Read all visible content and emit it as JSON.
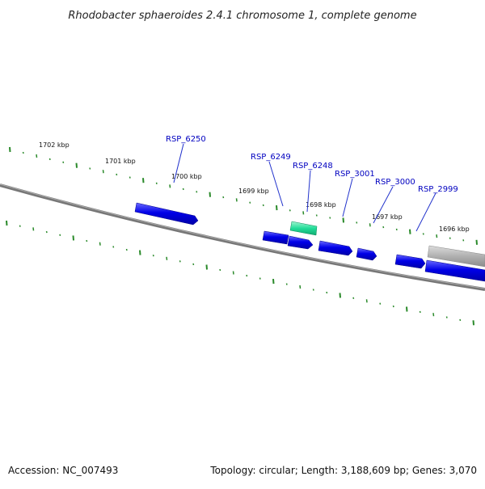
{
  "title": "Rhodobacter sphaeroides 2.4.1 chromosome 1, complete genome",
  "footer": {
    "accession": "Accession: NC_007493",
    "summary": "Topology: circular; Length: 3,188,609 bp; Genes: 3,070"
  },
  "colors": {
    "backbone": "#777777",
    "gene_forward": "#0000e8",
    "gene_highlight": "#22dd99",
    "gene_other": "#b0b0b0",
    "tick": "#2a8a2a",
    "label": "#0000c0"
  },
  "kbp_ticks": [
    "1702 kbp",
    "1701 kbp",
    "1700 kbp",
    "1699 kbp",
    "1698 kbp",
    "1697 kbp",
    "1696 kbp"
  ],
  "genes": [
    {
      "name": "RSP_6250",
      "color": "gene_forward"
    },
    {
      "name": "RSP_6249",
      "color": "gene_forward"
    },
    {
      "name": "RSP_6248",
      "color": "gene_highlight"
    },
    {
      "name": "RSP_3001",
      "color": "gene_forward"
    },
    {
      "name": "RSP_3000",
      "color": "gene_forward"
    },
    {
      "name": "RSP_2999",
      "color": "gene_forward"
    }
  ]
}
